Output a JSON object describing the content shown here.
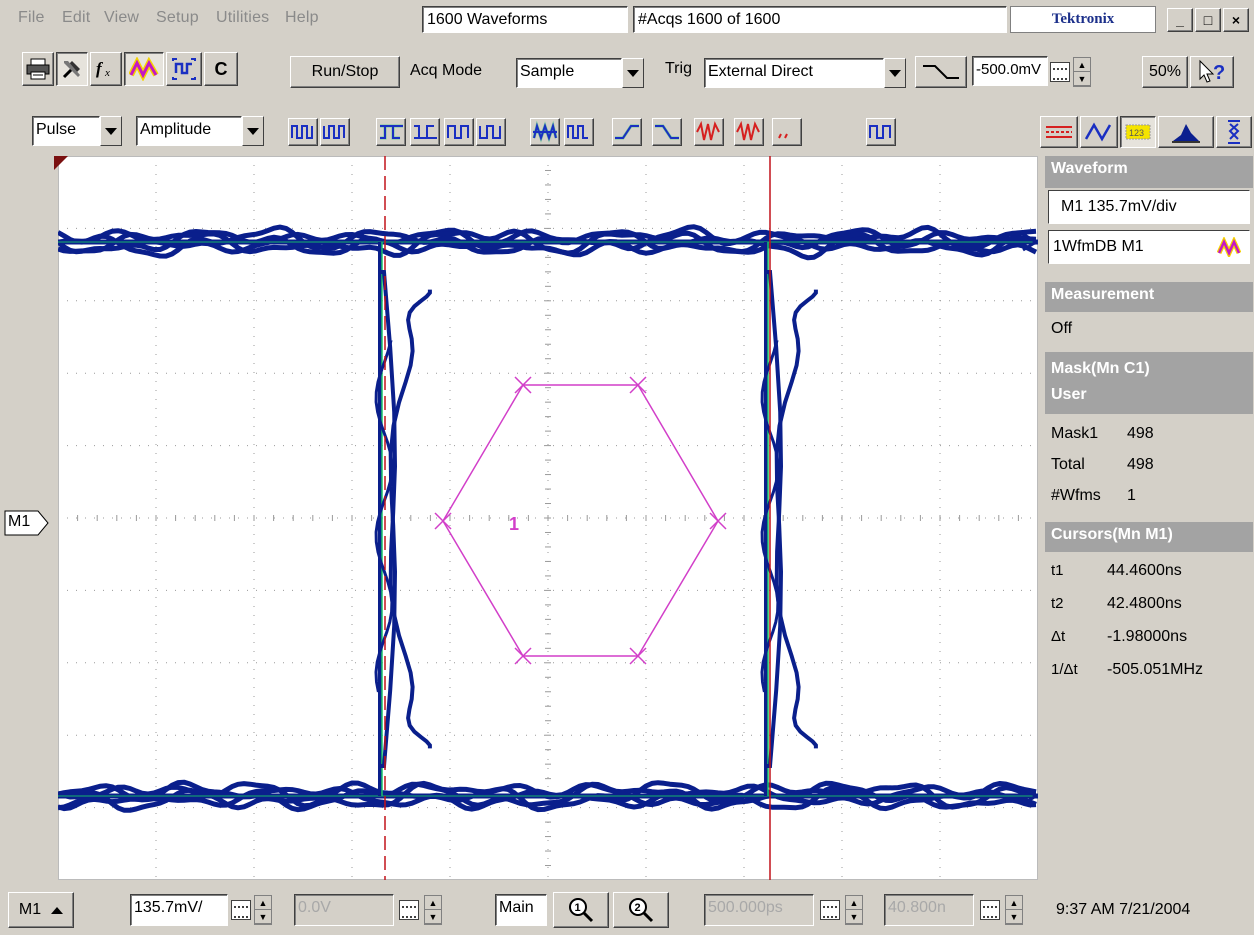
{
  "menu": {
    "items": [
      "File",
      "Edit",
      "View",
      "Setup",
      "Utilities",
      "Help"
    ],
    "waveforms_box": "1600 Waveforms",
    "acqs_box": "#Acqs  1600 of 1600",
    "brand": "Tektronix",
    "minimize": "_",
    "maximize": "□",
    "close": "×"
  },
  "toolbar": {
    "c_button": "C",
    "run_stop": "Run/Stop",
    "acq_mode_label": "Acq Mode",
    "acq_mode_value": "Sample",
    "trig_label": "Trig",
    "trig_value": "External Direct",
    "trig_level": "-500.0mV",
    "zoom": "50%",
    "help_icon": "?"
  },
  "meas_toolbar": {
    "category": "Pulse",
    "subcategory": "Amplitude"
  },
  "channel_marker": "M1",
  "mask_label": "1",
  "right_panel": {
    "waveform_head": "Waveform",
    "waveform_scale": "M1 135.7mV/div",
    "waveform_source": "1WfmDB M1",
    "measurement_head": "Measurement",
    "measurement_value": "Off",
    "mask_head_line1": "Mask(Mn C1)",
    "mask_head_line2": "User",
    "mask_rows": [
      {
        "label": "Mask1",
        "value": "498"
      },
      {
        "label": "Total",
        "value": "498"
      },
      {
        "label": "#Wfms",
        "value": "1"
      }
    ],
    "cursors_head": "Cursors(Mn M1)",
    "cursor_rows": [
      {
        "label": "t1",
        "value": "44.4600ns"
      },
      {
        "label": "t2",
        "value": "42.4800ns"
      },
      {
        "label": "Δt",
        "value": "-1.98000ns"
      },
      {
        "label": "1/Δt",
        "value": "-505.051MHz"
      }
    ]
  },
  "statusbar": {
    "channel": "M1",
    "vscale": "135.7mV/",
    "offset": "0.0V",
    "timebase": "Main",
    "hscale": "500.000ps",
    "hpos": "40.800n",
    "datetime": "9:37 AM 7/21/2004"
  },
  "colors": {
    "waveform": "#0a1f8c",
    "mask": "#d23fc9",
    "cursor": "#c2121a",
    "green_trace": "#19c46b"
  }
}
